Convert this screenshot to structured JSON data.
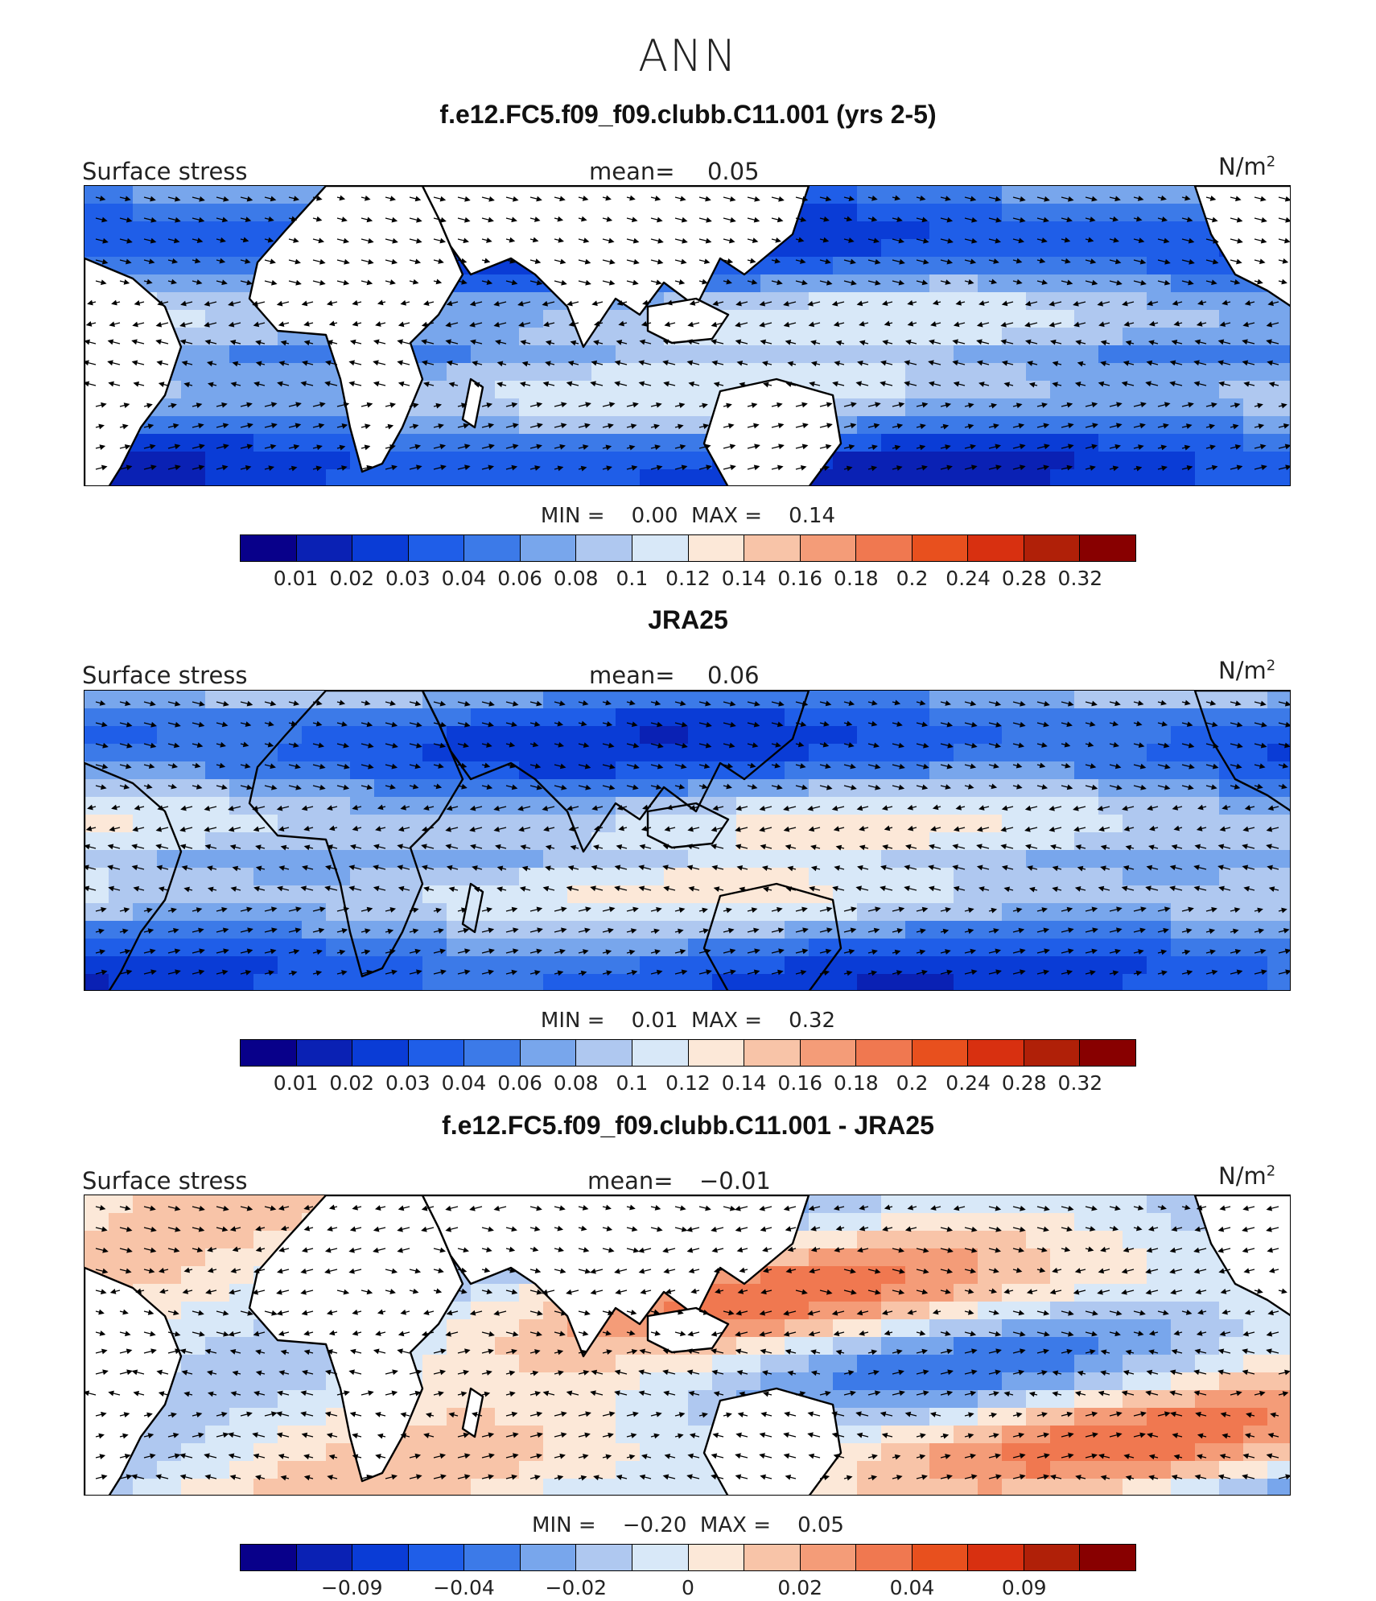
{
  "title": "ANN",
  "colors": [
    "#08008a",
    "#0a21b4",
    "#0a3cd6",
    "#1f5ee8",
    "#3c7ae8",
    "#78a6ec",
    "#afc8f0",
    "#d8e8f8",
    "#fce8d8",
    "#f8c4a8",
    "#f49c78",
    "#f07850",
    "#e8501e",
    "#d83010",
    "#b02008",
    "#880000"
  ],
  "land_color": "#ffffff",
  "panels": [
    {
      "title": "f.e12.FC5.f09_f09.clubb.C11.001 (yrs 2-5)",
      "field_label": "Surface stress",
      "mean_label": "mean=",
      "mean_value": "0.05",
      "units": "N/m",
      "units_exp": "2",
      "min_label": "MIN =",
      "min_value": "0.00",
      "max_label": "MAX =",
      "max_value": "0.14",
      "ticks": [
        "0.01",
        "0.02",
        "0.03",
        "0.04",
        "0.06",
        "0.08",
        "0.1",
        "0.12",
        "0.14",
        "0.16",
        "0.18",
        "0.2",
        "0.24",
        "0.28",
        "0.32"
      ],
      "land_masked": true
    },
    {
      "title": "JRA25",
      "field_label": "Surface stress",
      "mean_label": "mean=",
      "mean_value": "0.06",
      "units": "N/m",
      "units_exp": "2",
      "min_label": "MIN =",
      "min_value": "0.01",
      "max_label": "MAX =",
      "max_value": "0.32",
      "ticks": [
        "0.01",
        "0.02",
        "0.03",
        "0.04",
        "0.06",
        "0.08",
        "0.1",
        "0.12",
        "0.14",
        "0.16",
        "0.18",
        "0.2",
        "0.24",
        "0.28",
        "0.32"
      ],
      "land_masked": false
    },
    {
      "title": "f.e12.FC5.f09_f09.clubb.C11.001 - JRA25",
      "field_label": "Surface stress",
      "mean_label": "mean=",
      "mean_value": "−0.01",
      "units": "N/m",
      "units_exp": "2",
      "min_label": "MIN =",
      "min_value": "−0.20",
      "max_label": "MAX =",
      "max_value": "0.05",
      "ticks": [
        "−0.09",
        "−0.04",
        "−0.02",
        "0",
        "0.02",
        "0.04",
        "0.09"
      ],
      "land_masked": true
    }
  ]
}
